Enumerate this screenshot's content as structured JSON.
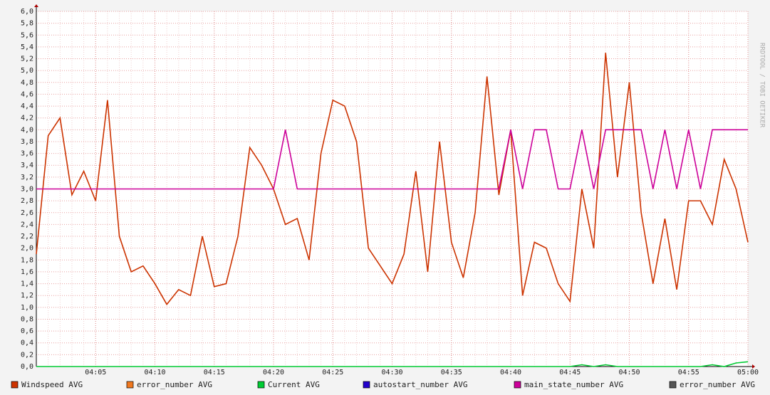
{
  "chart_data": {
    "type": "line",
    "watermark": "RRDTOOL / TOBI OETIKER",
    "x": [
      "04:00",
      "04:01",
      "04:02",
      "04:03",
      "04:04",
      "04:05",
      "04:06",
      "04:07",
      "04:08",
      "04:09",
      "04:10",
      "04:11",
      "04:12",
      "04:13",
      "04:14",
      "04:15",
      "04:16",
      "04:17",
      "04:18",
      "04:19",
      "04:20",
      "04:21",
      "04:22",
      "04:23",
      "04:24",
      "04:25",
      "04:26",
      "04:27",
      "04:28",
      "04:29",
      "04:30",
      "04:31",
      "04:32",
      "04:33",
      "04:34",
      "04:35",
      "04:36",
      "04:37",
      "04:38",
      "04:39",
      "04:40",
      "04:41",
      "04:42",
      "04:43",
      "04:44",
      "04:45",
      "04:46",
      "04:47",
      "04:48",
      "04:49",
      "04:50",
      "04:51",
      "04:52",
      "04:53",
      "04:54",
      "04:55",
      "04:56",
      "04:57",
      "04:58",
      "04:59",
      "05:00"
    ],
    "xlim": [
      "04:00",
      "05:00"
    ],
    "xticks": [
      "04:05",
      "04:10",
      "04:15",
      "04:20",
      "04:25",
      "04:30",
      "04:35",
      "04:40",
      "04:45",
      "04:50",
      "04:55",
      "05:00"
    ],
    "ylim": [
      0,
      6
    ],
    "yticks": [
      {
        "value": 0,
        "label": "0,0"
      },
      {
        "value": 0.2,
        "label": "0,2"
      },
      {
        "value": 0.4,
        "label": "0,4"
      },
      {
        "value": 0.6,
        "label": "0,6"
      },
      {
        "value": 0.8,
        "label": "0,8"
      },
      {
        "value": 1,
        "label": "1,0"
      },
      {
        "value": 1.2,
        "label": "1,2"
      },
      {
        "value": 1.4,
        "label": "1,4"
      },
      {
        "value": 1.6,
        "label": "1,6"
      },
      {
        "value": 1.8,
        "label": "1,8"
      },
      {
        "value": 2,
        "label": "2,0"
      },
      {
        "value": 2.2,
        "label": "2,2"
      },
      {
        "value": 2.4,
        "label": "2,4"
      },
      {
        "value": 2.6,
        "label": "2,6"
      },
      {
        "value": 2.8,
        "label": "2,8"
      },
      {
        "value": 3,
        "label": "3,0"
      },
      {
        "value": 3.2,
        "label": "3,2"
      },
      {
        "value": 3.4,
        "label": "3,4"
      },
      {
        "value": 3.6,
        "label": "3,6"
      },
      {
        "value": 3.8,
        "label": "3,8"
      },
      {
        "value": 4,
        "label": "4,0"
      },
      {
        "value": 4.2,
        "label": "4,2"
      },
      {
        "value": 4.4,
        "label": "4,4"
      },
      {
        "value": 4.6,
        "label": "4,6"
      },
      {
        "value": 4.8,
        "label": "4,8"
      },
      {
        "value": 5,
        "label": "5,0"
      },
      {
        "value": 5.2,
        "label": "5,2"
      },
      {
        "value": 5.4,
        "label": "5,4"
      },
      {
        "value": 5.6,
        "label": "5,6"
      },
      {
        "value": 5.8,
        "label": "5,8"
      },
      {
        "value": 6,
        "label": "6,0"
      }
    ],
    "grid": true,
    "series": [
      {
        "name": "Windspeed AVG",
        "color": "#cc3300",
        "values": [
          1.9,
          3.9,
          4.2,
          2.9,
          3.3,
          2.8,
          4.5,
          2.2,
          1.6,
          1.7,
          1.4,
          1.05,
          1.3,
          1.2,
          2.2,
          1.35,
          1.4,
          2.2,
          3.7,
          3.4,
          3.0,
          2.4,
          2.5,
          1.8,
          3.6,
          4.5,
          4.4,
          3.8,
          2.0,
          1.7,
          1.4,
          1.9,
          3.3,
          1.6,
          3.8,
          2.1,
          1.5,
          2.6,
          4.9,
          2.9,
          4.0,
          1.2,
          2.1,
          2.0,
          1.4,
          1.1,
          3.0,
          2.0,
          5.3,
          3.2,
          4.8,
          2.6,
          1.4,
          2.5,
          1.3,
          2.8,
          2.8,
          2.4,
          3.5,
          3.0,
          2.1
        ]
      },
      {
        "name": "error_number AVG",
        "color": "#f07820"
      },
      {
        "name": "Current AVG",
        "color": "#00cc33",
        "values": [
          0,
          0,
          0,
          0,
          0,
          0,
          0,
          0,
          0,
          0,
          0,
          0,
          0,
          0,
          0,
          0,
          0,
          0,
          0,
          0,
          0,
          0,
          0,
          0,
          0,
          0,
          0,
          0,
          0,
          0,
          0,
          0,
          0,
          0,
          0,
          0,
          0,
          0,
          0,
          0,
          0,
          0,
          0,
          0,
          0,
          0,
          0.03,
          0,
          0.03,
          0,
          0,
          0,
          0,
          0,
          0,
          0,
          0,
          0.03,
          0,
          0.06,
          0.08
        ]
      },
      {
        "name": "autostart_number AVG",
        "color": "#2200cc"
      },
      {
        "name": "main_state_number AVG",
        "color": "#cc0099",
        "values": [
          3,
          3,
          3,
          3,
          3,
          3,
          3,
          3,
          3,
          3,
          3,
          3,
          3,
          3,
          3,
          3,
          3,
          3,
          3,
          3,
          3,
          4,
          3,
          3,
          3,
          3,
          3,
          3,
          3,
          3,
          3,
          3,
          3,
          3,
          3,
          3,
          3,
          3,
          3,
          3,
          4,
          3,
          4,
          4,
          3,
          3,
          4,
          3,
          4,
          4,
          4,
          4,
          3,
          4,
          3,
          4,
          3,
          4,
          4,
          4,
          4
        ]
      },
      {
        "name": "error_number AVG",
        "color": "#555555"
      }
    ]
  }
}
